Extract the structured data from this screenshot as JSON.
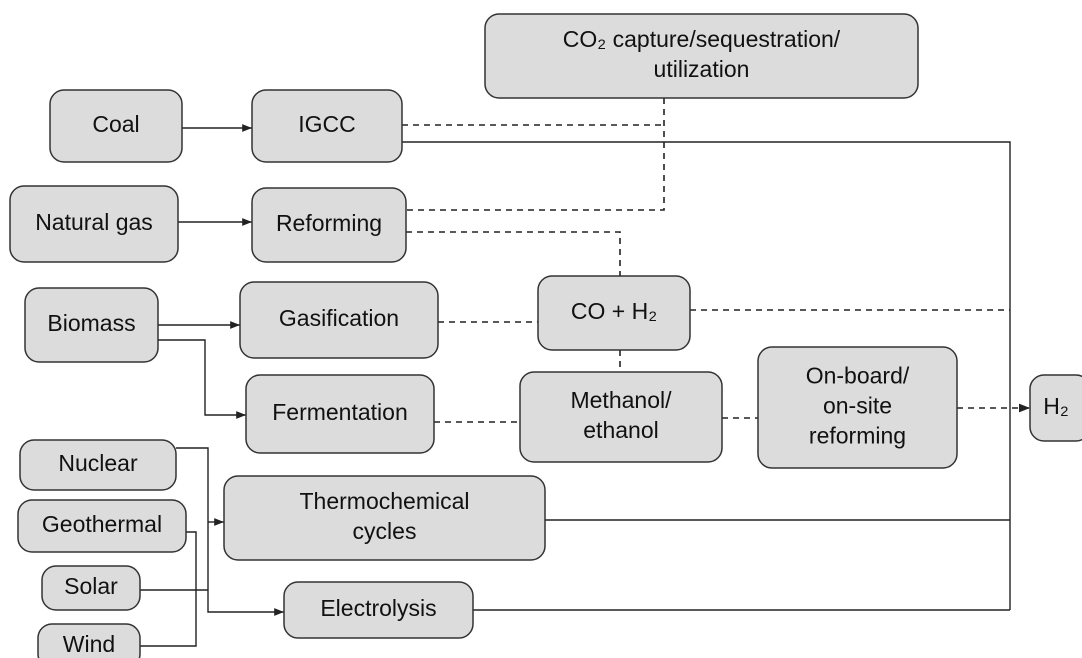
{
  "nodes": [
    {
      "lines": [
        "CO₂ capture/sequestration/",
        "utilization"
      ]
    },
    {
      "lines": [
        "Coal"
      ]
    },
    {
      "lines": [
        "IGCC"
      ]
    },
    {
      "lines": [
        "Natural gas"
      ]
    },
    {
      "lines": [
        "Reforming"
      ]
    },
    {
      "lines": [
        "Biomass"
      ]
    },
    {
      "lines": [
        "Gasification"
      ]
    },
    {
      "lines": [
        "CO + H₂"
      ]
    },
    {
      "lines": [
        "Fermentation"
      ]
    },
    {
      "lines": [
        "Methanol/",
        "ethanol"
      ]
    },
    {
      "lines": [
        "On-board/",
        "on-site",
        "reforming"
      ]
    },
    {
      "lines": [
        "H₂"
      ]
    },
    {
      "lines": [
        "Nuclear"
      ]
    },
    {
      "lines": [
        "Thermochemical",
        "cycles"
      ]
    },
    {
      "lines": [
        "Geothermal"
      ]
    },
    {
      "lines": [
        "Solar"
      ]
    },
    {
      "lines": [
        "Electrolysis"
      ]
    },
    {
      "lines": [
        "Wind"
      ]
    }
  ]
}
